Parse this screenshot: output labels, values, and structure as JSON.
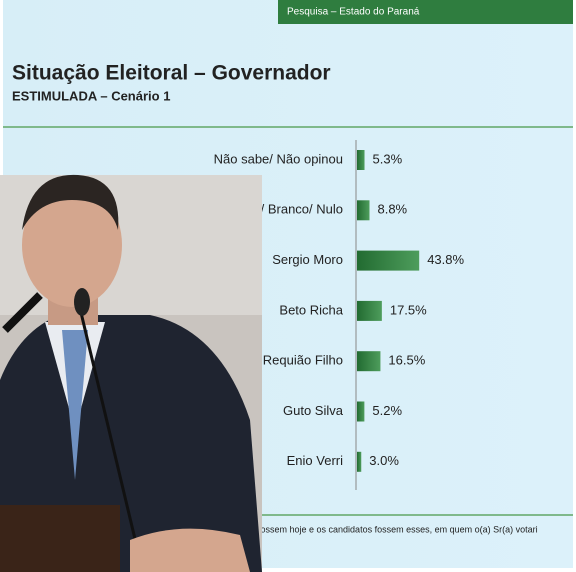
{
  "header": "Pesquisa – Estado do Paraná",
  "chart_data": {
    "type": "bar",
    "orientation": "horizontal",
    "title": "Situação Eleitoral – Governador",
    "subtitle": "ESTIMULADA – Cenário 1",
    "categories": [
      "Não sabe/ Não opinou",
      "Nenhum/ Branco/ Nulo",
      "Sergio Moro",
      "Beto Richa",
      "Requião Filho",
      "Guto Silva",
      "Enio Verri"
    ],
    "values": [
      5.3,
      8.8,
      43.8,
      17.5,
      16.5,
      5.2,
      3.0
    ],
    "value_labels": [
      "5.3%",
      "8.8%",
      "43.8%",
      "17.5%",
      "16.5%",
      "5.2%",
      "3.0%"
    ],
    "color": "#2f7d3f",
    "xlim": [
      0,
      50
    ]
  },
  "footnote": "fossem hoje e os candidatos fossem esses, em quem o(a) Sr(a) votari"
}
